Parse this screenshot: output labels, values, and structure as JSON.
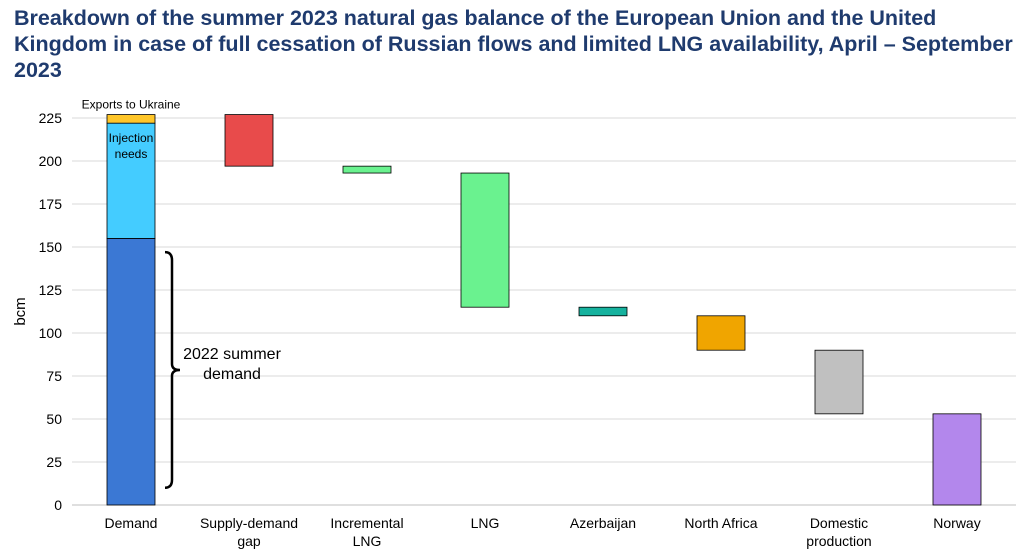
{
  "title": "Breakdown of the summer 2023 natural gas balance of the European Union and the United Kingdom in case of full cessation of Russian flows and limited LNG availability, April – September 2023",
  "chart_data": {
    "type": "bar",
    "subtype": "waterfall",
    "ylabel": "bcm",
    "xlabel": "",
    "ylim": [
      0,
      225
    ],
    "yticks": [
      0,
      25,
      50,
      75,
      100,
      125,
      150,
      175,
      200,
      225
    ],
    "grid": true,
    "categories": [
      [
        "Demand"
      ],
      [
        "Supply-demand",
        "gap"
      ],
      [
        "Incremental",
        "LNG"
      ],
      [
        "LNG"
      ],
      [
        "Azerbaijan"
      ],
      [
        "North Africa"
      ],
      [
        "Domestic",
        "production"
      ],
      [
        "Norway"
      ]
    ],
    "stacked_bar": {
      "category": "Demand",
      "segments": [
        {
          "base": 0,
          "top": 155,
          "color": "#3b78d4"
        },
        {
          "base": 155,
          "top": 222,
          "color": "#44ccff",
          "label": [
            "Injection",
            "needs"
          ]
        },
        {
          "base": 222,
          "top": 227,
          "color": "#ffc629",
          "label": [
            "Exports",
            "to Ukraine"
          ]
        }
      ]
    },
    "floating_bars": [
      {
        "category": "Supply-demand gap",
        "base": 197,
        "top": 227,
        "color": "#e84b4b"
      },
      {
        "category": "Incremental LNG",
        "base": 193,
        "top": 197,
        "color": "#6af28f"
      },
      {
        "category": "LNG",
        "base": 115,
        "top": 193,
        "color": "#6af28f"
      },
      {
        "category": "Azerbaijan",
        "base": 110,
        "top": 115,
        "color": "#16b29e"
      },
      {
        "category": "North Africa",
        "base": 90,
        "top": 110,
        "color": "#f0a500"
      },
      {
        "category": "Domestic production",
        "base": 53,
        "top": 90,
        "color": "#c0c0c0"
      },
      {
        "category": "Norway",
        "base": 0,
        "top": 53,
        "color": "#b387ec"
      }
    ],
    "bracket_annotation": {
      "label": [
        "2022 summer",
        "demand"
      ],
      "from": 10,
      "to": 147
    }
  }
}
